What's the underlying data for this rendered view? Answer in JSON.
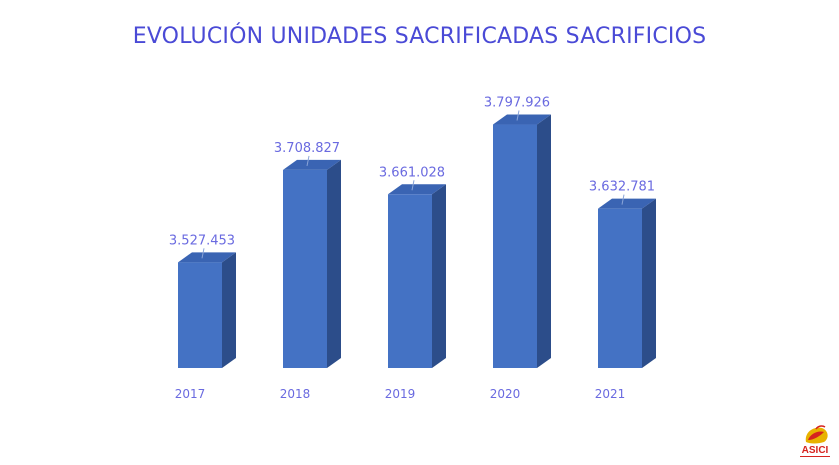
{
  "chart_data": {
    "type": "bar",
    "title": "EVOLUCIÓN UNIDADES SACRIFICADAS SACRIFICIOS",
    "categories": [
      "2017",
      "2018",
      "2019",
      "2020",
      "2021"
    ],
    "values": [
      3527453,
      3708827,
      3661028,
      3797926,
      3632781
    ],
    "value_labels": [
      "3.527.453",
      "3.708.827",
      "3.661.028",
      "3.797.926",
      "3.632.781"
    ],
    "xlabel": "",
    "ylabel": "",
    "ylim": [
      3320000,
      3850000
    ],
    "grid": false,
    "legend": "none",
    "style": "3d-column"
  },
  "colors": {
    "bar_front": "#4472c4",
    "bar_side": "#2c4d8a",
    "bar_top": "#3a64b3",
    "text": "#6a6ae0",
    "title": "#4a4ad6"
  },
  "logo": {
    "text": "ASICI",
    "icon": "asici-logo-icon"
  }
}
